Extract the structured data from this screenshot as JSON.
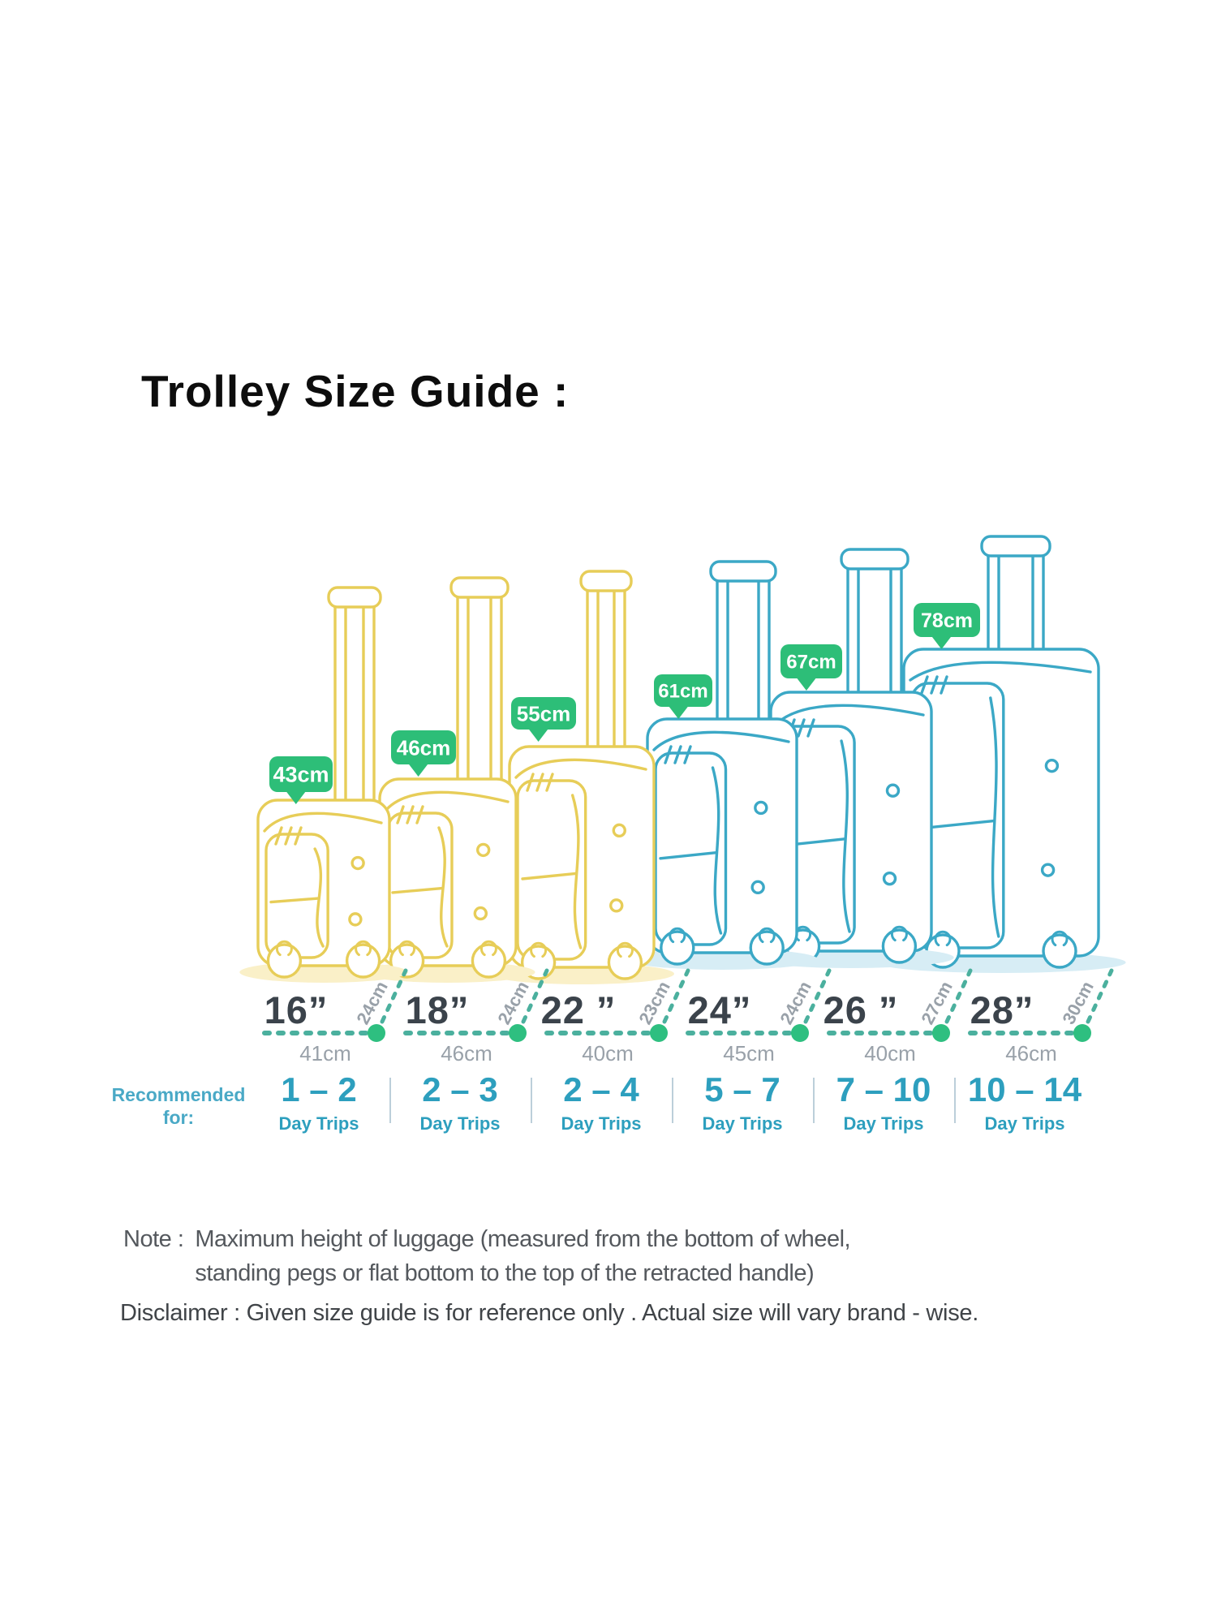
{
  "title": "Trolley Size Guide :",
  "columns": [
    {
      "size": "16”",
      "height_badge": "43cm",
      "width": "41cm",
      "depth": "24cm",
      "days": "1 – 2",
      "days_unit": "Day Trips"
    },
    {
      "size": "18”",
      "height_badge": "46cm",
      "width": "46cm",
      "depth": "24cm",
      "days": "2 – 3",
      "days_unit": "Day Trips"
    },
    {
      "size": "22 ”",
      "height_badge": "55cm",
      "width": "40cm",
      "depth": "23cm",
      "days": "2 – 4",
      "days_unit": "Day Trips"
    },
    {
      "size": "24”",
      "height_badge": "61cm",
      "width": "45cm",
      "depth": "24cm",
      "days": "5 – 7",
      "days_unit": "Day Trips"
    },
    {
      "size": "26 ”",
      "height_badge": "67cm",
      "width": "40cm",
      "depth": "27cm",
      "days": "7 – 10",
      "days_unit": "Day Trips"
    },
    {
      "size": "28”",
      "height_badge": "78cm",
      "width": "46cm",
      "depth": "30cm",
      "days": "10 – 14",
      "days_unit": "Day Trips"
    }
  ],
  "recommended": {
    "line1": "Recommended",
    "line2": "for:"
  },
  "note": {
    "label": "Note :",
    "line1": "Maximum height of luggage (measured from the bottom of wheel,",
    "line2": "standing pegs or flat bottom to the top of the retracted handle)"
  },
  "disclaimer": "Disclaimer : Given size guide is for reference only . Actual size will vary brand - wise.",
  "colors": {
    "badge_green": "#2dbe78",
    "dot_green": "#2ebf80",
    "dash_teal": "#4bb09e",
    "luggage_yellow": "#e7cd58",
    "yellow_shadow": "#faf0c8",
    "luggage_teal": "#3ba8c6",
    "teal_shadow": "#d7edf5",
    "size_text": "#3b434b",
    "gray_label": "#99a1a9",
    "days_teal": "#2d9fbe",
    "divider": "#bccfda",
    "recommended_teal": "#4aa9c6",
    "note_text": "#54585d",
    "disclaimer_text": "#404448"
  }
}
